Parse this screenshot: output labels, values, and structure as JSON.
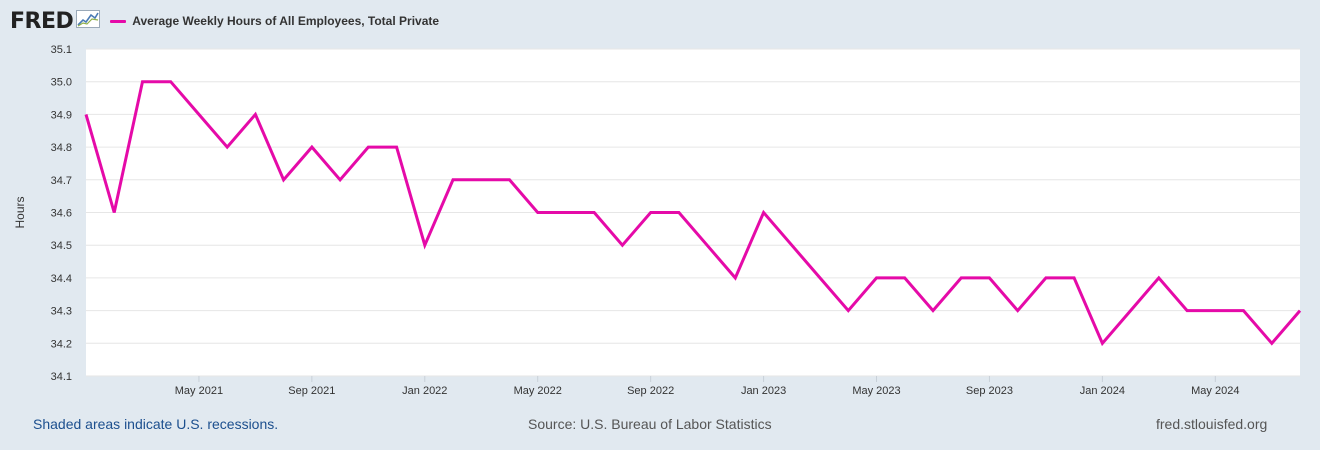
{
  "header": {
    "logo_text": "FRED",
    "legend_label": "Average Weekly Hours of All Employees, Total Private"
  },
  "footer": {
    "recession_note": "Shaded areas indicate U.S. recessions.",
    "source": "Source: U.S. Bureau of Labor Statistics",
    "site": "fred.stlouisfed.org"
  },
  "colors": {
    "series": "#e50aa8",
    "background": "#e1e9f0",
    "plot_background": "#ffffff",
    "grid": "#e6e6e6",
    "axis_text": "#333333"
  },
  "icons": [
    "fred-chart-icon"
  ],
  "chart_data": {
    "type": "line",
    "ylabel": "Hours",
    "ylim": [
      34.1,
      35.1
    ],
    "y_ticks": [
      "34.1",
      "34.2",
      "34.3",
      "34.4",
      "34.5",
      "34.6",
      "34.7",
      "34.8",
      "34.9",
      "35.0",
      "35.1"
    ],
    "x_ticks": [
      "May 2021",
      "Sep 2021",
      "Jan 2022",
      "May 2022",
      "Sep 2022",
      "Jan 2023",
      "May 2023",
      "Sep 2023",
      "Jan 2024",
      "May 2024"
    ],
    "grid": true,
    "series": [
      {
        "name": "Average Weekly Hours of All Employees, Total Private",
        "x": [
          "2021-01",
          "2021-02",
          "2021-03",
          "2021-04",
          "2021-05",
          "2021-06",
          "2021-07",
          "2021-08",
          "2021-09",
          "2021-10",
          "2021-11",
          "2021-12",
          "2022-01",
          "2022-02",
          "2022-03",
          "2022-04",
          "2022-05",
          "2022-06",
          "2022-07",
          "2022-08",
          "2022-09",
          "2022-10",
          "2022-11",
          "2022-12",
          "2023-01",
          "2023-02",
          "2023-03",
          "2023-04",
          "2023-05",
          "2023-06",
          "2023-07",
          "2023-08",
          "2023-09",
          "2023-10",
          "2023-11",
          "2023-12",
          "2024-01",
          "2024-02",
          "2024-03",
          "2024-04",
          "2024-05",
          "2024-06",
          "2024-07",
          "2024-08"
        ],
        "values": [
          34.9,
          34.6,
          35.0,
          35.0,
          34.9,
          34.8,
          34.9,
          34.7,
          34.8,
          34.7,
          34.8,
          34.8,
          34.5,
          34.7,
          34.7,
          34.7,
          34.6,
          34.6,
          34.6,
          34.5,
          34.6,
          34.6,
          34.5,
          34.4,
          34.6,
          34.5,
          34.4,
          34.3,
          34.4,
          34.4,
          34.3,
          34.4,
          34.4,
          34.3,
          34.4,
          34.4,
          34.2,
          34.3,
          34.4,
          34.3,
          34.3,
          34.3,
          34.2,
          34.3
        ]
      }
    ]
  }
}
